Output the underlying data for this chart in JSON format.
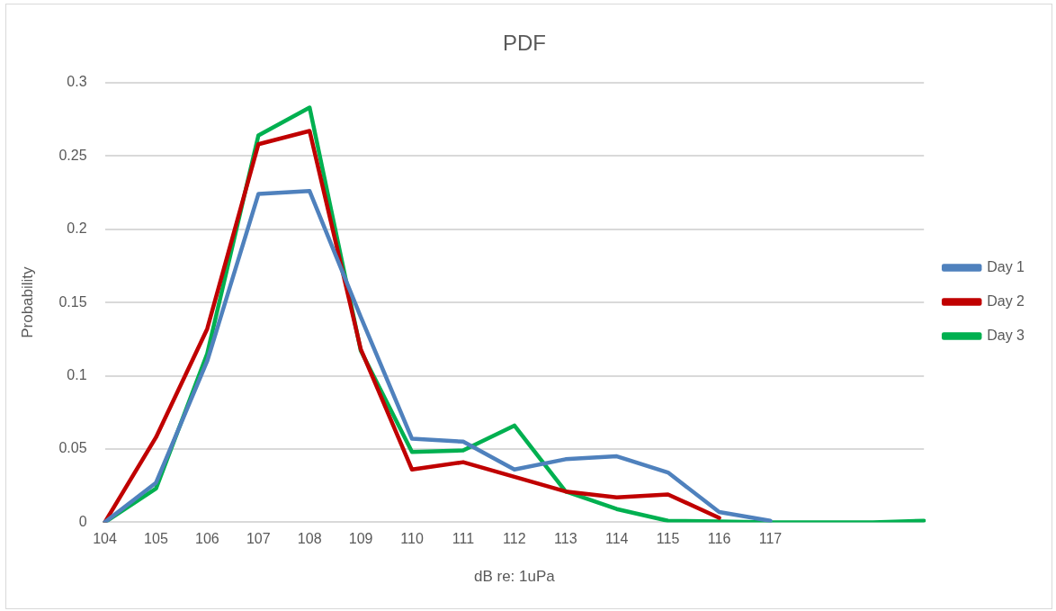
{
  "chart_data": {
    "type": "line",
    "title": "PDF",
    "xlabel": "dB re: 1uPa",
    "ylabel": "Probability",
    "categories": [
      "104",
      "105",
      "106",
      "107",
      "108",
      "109",
      "110",
      "111",
      "112",
      "113",
      "114",
      "115",
      "116",
      "117",
      null,
      null,
      null
    ],
    "series": [
      {
        "name": "Day 1",
        "color": "#4f81bd",
        "values": [
          0,
          0.027,
          0.11,
          0.224,
          0.226,
          0.14,
          0.057,
          0.055,
          0.036,
          0.043,
          0.045,
          0.034,
          0.007,
          0.001,
          null,
          null,
          null
        ]
      },
      {
        "name": "Day 2",
        "color": "#c00000",
        "values": [
          0,
          0.058,
          0.132,
          0.258,
          0.267,
          0.118,
          0.036,
          0.041,
          0.031,
          0.021,
          0.017,
          0.019,
          0.003,
          null,
          null,
          null,
          null
        ]
      },
      {
        "name": "Day 3",
        "color": "#00b050",
        "values": [
          0,
          0.023,
          0.115,
          0.264,
          0.283,
          0.117,
          0.048,
          0.049,
          0.066,
          0.021,
          0.009,
          0.001,
          0.0005,
          0,
          0,
          0,
          0.001
        ]
      }
    ],
    "ylim": [
      0,
      0.3
    ],
    "yticks": [
      0,
      0.05,
      0.1,
      0.15,
      0.2,
      0.25,
      0.3
    ],
    "grid": "y",
    "legend": "right",
    "marker": "none",
    "line_style": "solid"
  }
}
